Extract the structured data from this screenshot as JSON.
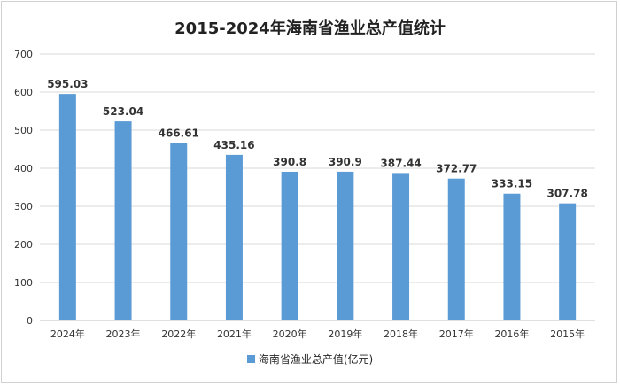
{
  "chart_data": {
    "type": "bar",
    "title": "2015-2024年海南省渔业总产值统计",
    "categories": [
      "2024年",
      "2023年",
      "2022年",
      "2021年",
      "2020年",
      "2019年",
      "2018年",
      "2017年",
      "2016年",
      "2015年"
    ],
    "series": [
      {
        "name": "海南省渔业总产值(亿元)",
        "values": [
          595.03,
          523.04,
          466.61,
          435.16,
          390.8,
          390.9,
          387.44,
          372.77,
          333.15,
          307.78
        ]
      }
    ],
    "data_labels": [
      "595.03",
      "523.04",
      "466.61",
      "435.16",
      "390.8",
      "390.9",
      "387.44",
      "372.77",
      "333.15",
      "307.78"
    ],
    "ylim": [
      0,
      700
    ],
    "yticks": [
      0,
      100,
      200,
      300,
      400,
      500,
      600,
      700
    ],
    "grid": true,
    "legend": "bottom",
    "colors": {
      "bar": "#5b9bd5",
      "grid": "#d9d9d9",
      "axis": "#bfbfbf"
    }
  }
}
